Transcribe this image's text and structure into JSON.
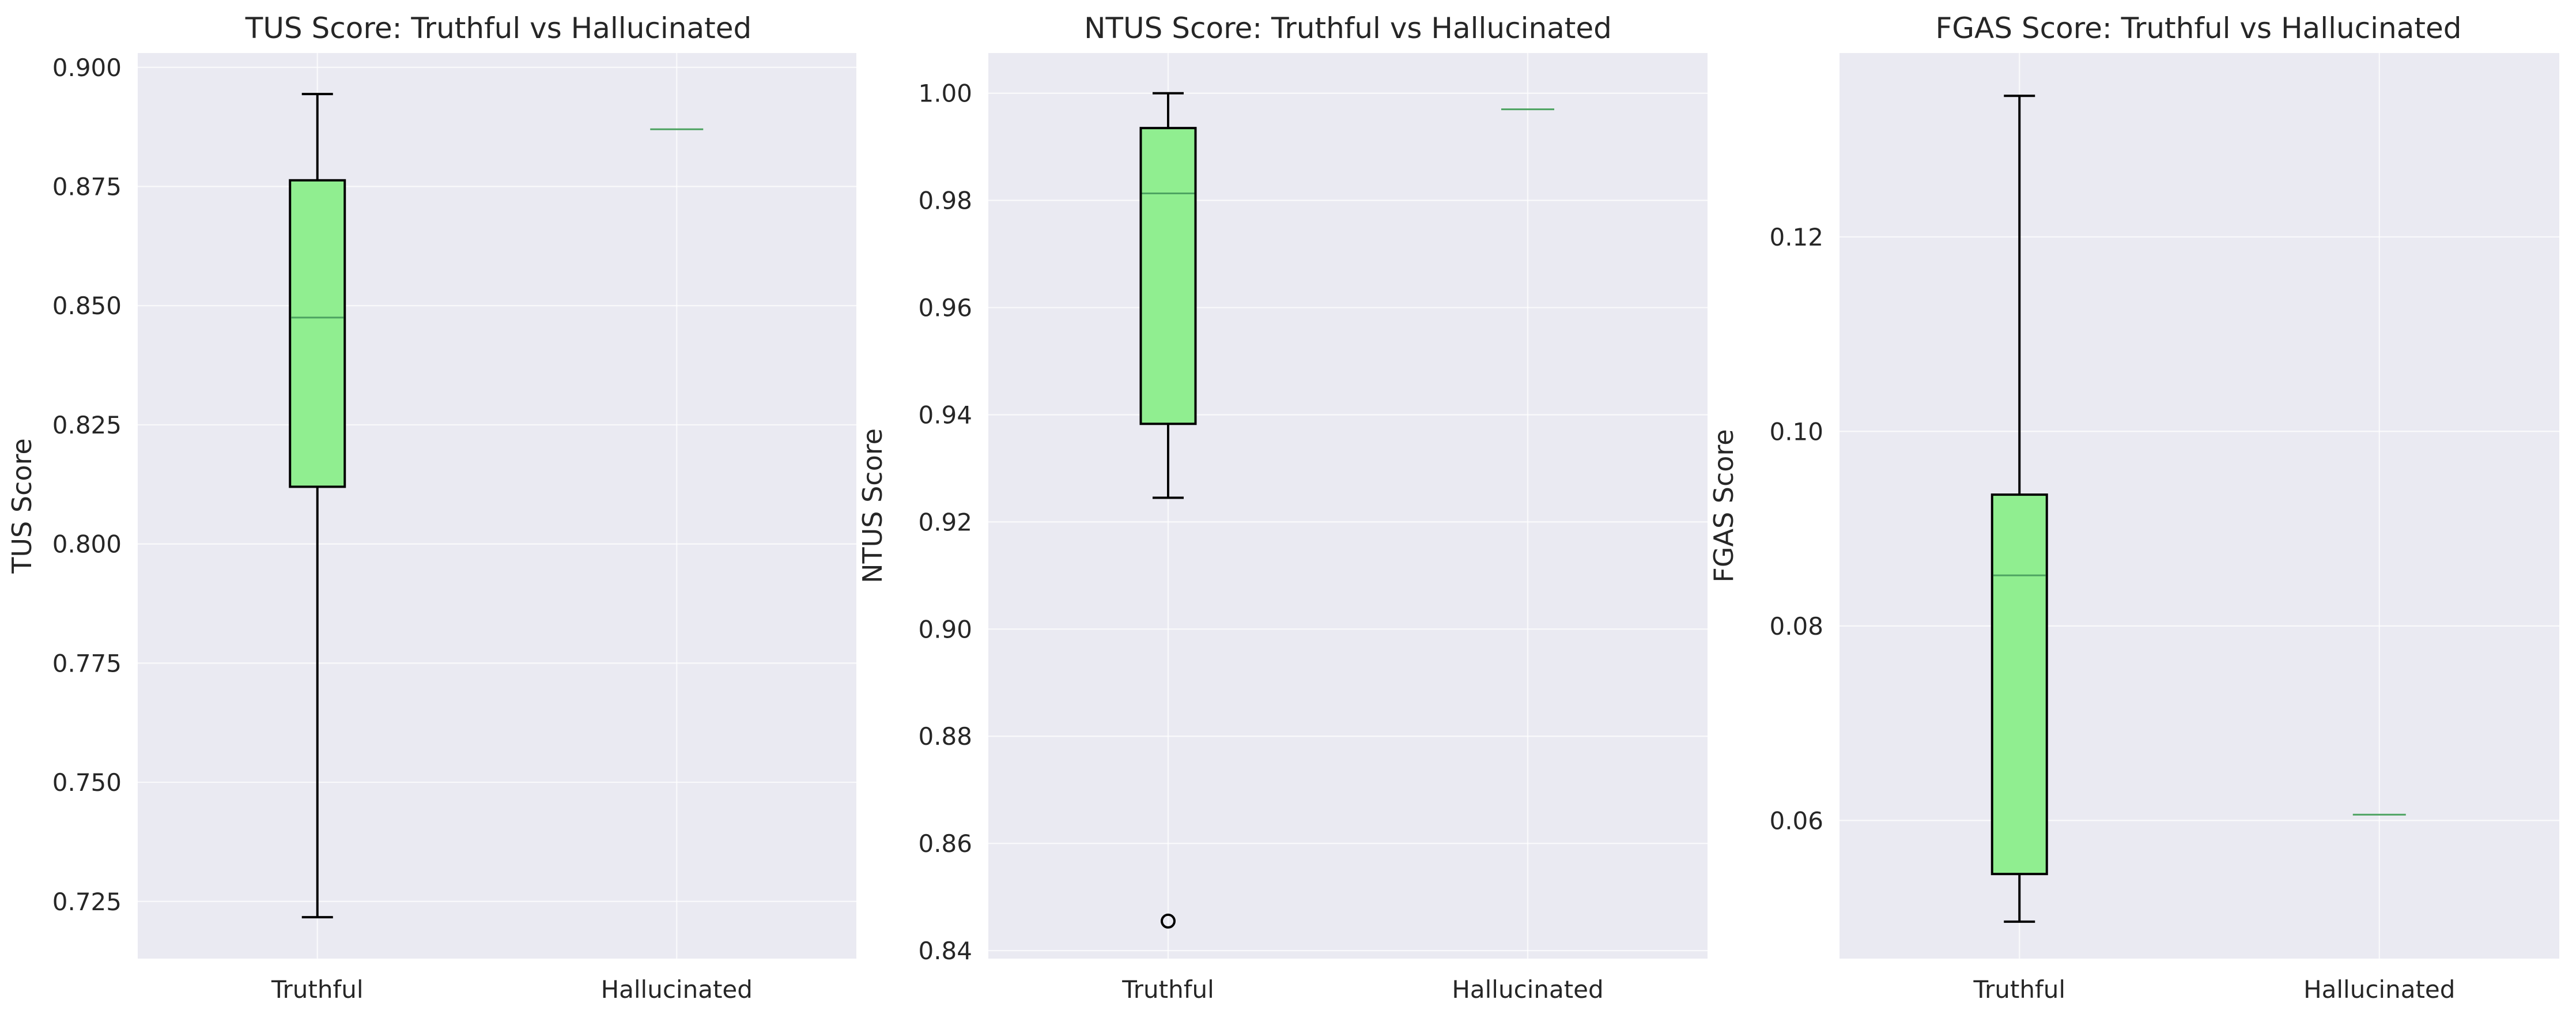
{
  "chart_data": [
    {
      "type": "box",
      "title": "TUS Score: Truthful vs Hallucinated",
      "ylabel": "TUS Score",
      "xlabel": "",
      "categories": [
        "Truthful",
        "Hallucinated"
      ],
      "ylim": [
        0.713,
        0.903
      ],
      "yticks": [
        0.725,
        0.75,
        0.775,
        0.8,
        0.825,
        0.85,
        0.875,
        0.9
      ],
      "ytick_labels": [
        "0.725",
        "0.750",
        "0.775",
        "0.800",
        "0.825",
        "0.850",
        "0.875",
        "0.900"
      ],
      "grid": true,
      "boxes": [
        {
          "name": "Truthful",
          "whisker_low": 0.7217,
          "q1": 0.812,
          "median": 0.8475,
          "q3": 0.8763,
          "whisker_high": 0.8944,
          "fliers": []
        },
        {
          "name": "Hallucinated",
          "whisker_low": 0.887,
          "q1": 0.887,
          "median": 0.887,
          "q3": 0.887,
          "whisker_high": 0.887,
          "fliers": []
        }
      ]
    },
    {
      "type": "box",
      "title": "NTUS Score: Truthful vs Hallucinated",
      "ylabel": "NTUS Score",
      "xlabel": "",
      "categories": [
        "Truthful",
        "Hallucinated"
      ],
      "ylim": [
        0.8385,
        1.0075
      ],
      "yticks": [
        0.84,
        0.86,
        0.88,
        0.9,
        0.92,
        0.94,
        0.96,
        0.98,
        1.0
      ],
      "ytick_labels": [
        "0.84",
        "0.86",
        "0.88",
        "0.90",
        "0.92",
        "0.94",
        "0.96",
        "0.98",
        "1.00"
      ],
      "grid": true,
      "boxes": [
        {
          "name": "Truthful",
          "whisker_low": 0.9245,
          "q1": 0.9383,
          "median": 0.9813,
          "q3": 0.9935,
          "whisker_high": 1.0,
          "fliers": [
            0.8455
          ]
        },
        {
          "name": "Hallucinated",
          "whisker_low": 0.997,
          "q1": 0.997,
          "median": 0.997,
          "q3": 0.997,
          "whisker_high": 0.997,
          "fliers": []
        }
      ]
    },
    {
      "type": "box",
      "title": "FGAS Score: Truthful vs Hallucinated",
      "ylabel": "FGAS Score",
      "xlabel": "",
      "categories": [
        "Truthful",
        "Hallucinated"
      ],
      "ylim": [
        0.0458,
        0.1389
      ],
      "yticks": [
        0.06,
        0.08,
        0.1,
        0.12
      ],
      "ytick_labels": [
        "0.06",
        "0.08",
        "0.10",
        "0.12"
      ],
      "grid": true,
      "boxes": [
        {
          "name": "Truthful",
          "whisker_low": 0.0496,
          "q1": 0.0545,
          "median": 0.0852,
          "q3": 0.0935,
          "whisker_high": 0.1345,
          "fliers": []
        },
        {
          "name": "Hallucinated",
          "whisker_low": 0.0606,
          "q1": 0.0606,
          "median": 0.0606,
          "q3": 0.0606,
          "whisker_high": 0.0606,
          "fliers": []
        }
      ]
    }
  ],
  "colors": {
    "box_fill": "#90ee90",
    "median_line": "#4da361",
    "plot_background": "#eaeaf2",
    "grid": "#ffffff"
  }
}
